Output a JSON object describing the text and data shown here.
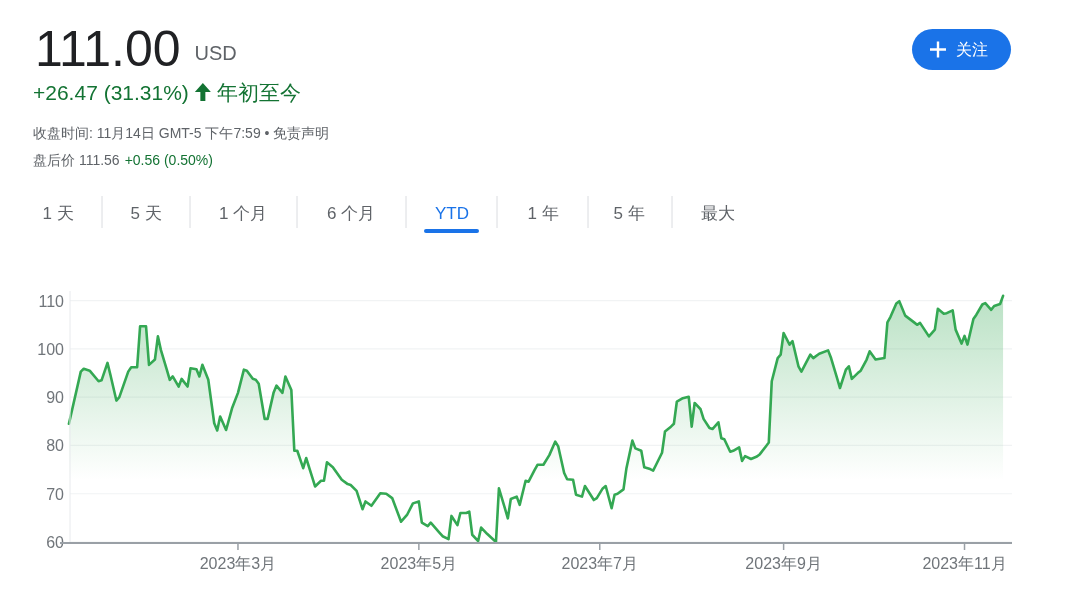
{
  "chart_data": {
    "type": "area",
    "title": "111.00",
    "subtitle": "USD",
    "annotations": [
      "+26.47 (31.31%)",
      "年初至今",
      "收盘时间: 11月14日 GMT-5 下午7:59 • 免责声明",
      "盘后价 111.56",
      "+0.56 (0.50%)",
      "1 天",
      "5 天",
      "1 个月",
      "6 个月",
      "YTD",
      "1 年",
      "5 年",
      "最大",
      "关注"
    ],
    "color": "#34a853",
    "grid": "y",
    "marker": "none",
    "line_style": "solid",
    "xlim": [
      "2023-01-01",
      "2023-11-16"
    ],
    "ylim": [
      60,
      112
    ],
    "xticks": [
      {
        "value": "2023-03-01",
        "label": "2023年3月"
      },
      {
        "value": "2023-05-01",
        "label": "2023年5月"
      },
      {
        "value": "2023-07-01",
        "label": "2023年7月"
      },
      {
        "value": "2023-09-01",
        "label": "2023年9月"
      },
      {
        "value": "2023-11-01",
        "label": "2023年11月"
      }
    ],
    "yticks": [
      60,
      70,
      80,
      90,
      100,
      110
    ],
    "x": [
      "2023-01-03",
      "2023-01-07",
      "2023-01-08",
      "2023-01-10",
      "2023-01-13",
      "2023-01-14",
      "2023-01-16",
      "2023-01-17",
      "2023-01-19",
      "2023-01-20",
      "2023-01-23",
      "2023-01-24",
      "2023-01-26",
      "2023-01-27",
      "2023-01-29",
      "2023-01-30",
      "2023-02-01",
      "2023-02-02",
      "2023-02-03",
      "2023-02-05",
      "2023-02-06",
      "2023-02-07",
      "2023-02-09",
      "2023-02-10",
      "2023-02-12",
      "2023-02-13",
      "2023-02-15",
      "2023-02-16",
      "2023-02-17",
      "2023-02-19",
      "2023-02-21",
      "2023-02-22",
      "2023-02-23",
      "2023-02-25",
      "2023-02-27",
      "2023-03-01",
      "2023-03-03",
      "2023-03-04",
      "2023-03-06",
      "2023-03-07",
      "2023-03-08",
      "2023-03-10",
      "2023-03-11",
      "2023-03-13",
      "2023-03-14",
      "2023-03-16",
      "2023-03-17",
      "2023-03-19",
      "2023-03-20",
      "2023-03-21",
      "2023-03-23",
      "2023-03-24",
      "2023-03-26",
      "2023-03-27",
      "2023-03-29",
      "2023-03-30",
      "2023-03-31",
      "2023-04-02",
      "2023-04-05",
      "2023-04-07",
      "2023-04-08",
      "2023-04-10",
      "2023-04-12",
      "2023-04-13",
      "2023-04-15",
      "2023-04-18",
      "2023-04-20",
      "2023-04-22",
      "2023-04-25",
      "2023-04-27",
      "2023-04-29",
      "2023-05-01",
      "2023-05-02",
      "2023-05-04",
      "2023-05-05",
      "2023-05-08",
      "2023-05-09",
      "2023-05-11",
      "2023-05-12",
      "2023-05-14",
      "2023-05-15",
      "2023-05-17",
      "2023-05-18",
      "2023-05-19",
      "2023-05-21",
      "2023-05-22",
      "2023-05-24",
      "2023-05-27",
      "2023-05-28",
      "2023-05-30",
      "2023-05-31",
      "2023-06-01",
      "2023-06-03",
      "2023-06-04",
      "2023-06-06",
      "2023-06-07",
      "2023-06-09",
      "2023-06-10",
      "2023-06-12",
      "2023-06-14",
      "2023-06-16",
      "2023-06-17",
      "2023-06-19",
      "2023-06-20",
      "2023-06-22",
      "2023-06-23",
      "2023-06-25",
      "2023-06-26",
      "2023-06-29",
      "2023-06-30",
      "2023-07-02",
      "2023-07-03",
      "2023-07-05",
      "2023-07-06",
      "2023-07-07",
      "2023-07-09",
      "2023-07-10",
      "2023-07-12",
      "2023-07-13",
      "2023-07-15",
      "2023-07-16",
      "2023-07-18",
      "2023-07-19",
      "2023-07-20",
      "2023-07-22",
      "2023-07-23",
      "2023-07-25",
      "2023-07-26",
      "2023-07-27",
      "2023-07-29",
      "2023-07-31",
      "2023-08-01",
      "2023-08-02",
      "2023-08-04",
      "2023-08-05",
      "2023-08-07",
      "2023-08-08",
      "2023-08-10",
      "2023-08-11",
      "2023-08-12",
      "2023-08-14",
      "2023-08-15",
      "2023-08-17",
      "2023-08-18",
      "2023-08-19",
      "2023-08-21",
      "2023-08-23",
      "2023-08-24",
      "2023-08-26",
      "2023-08-27",
      "2023-08-28",
      "2023-08-30",
      "2023-08-31",
      "2023-09-01",
      "2023-09-03",
      "2023-09-04",
      "2023-09-06",
      "2023-09-07",
      "2023-09-10",
      "2023-09-11",
      "2023-09-13",
      "2023-09-16",
      "2023-09-17",
      "2023-09-19",
      "2023-09-20",
      "2023-09-22",
      "2023-09-23",
      "2023-09-24",
      "2023-09-26",
      "2023-09-27",
      "2023-09-29",
      "2023-09-30",
      "2023-10-02",
      "2023-10-05",
      "2023-10-06",
      "2023-10-07",
      "2023-10-09",
      "2023-10-10",
      "2023-10-12",
      "2023-10-15",
      "2023-10-16",
      "2023-10-17",
      "2023-10-20",
      "2023-10-22",
      "2023-10-23",
      "2023-10-25",
      "2023-10-26",
      "2023-10-28",
      "2023-10-29",
      "2023-10-31",
      "2023-11-01",
      "2023-11-02",
      "2023-11-04",
      "2023-11-05",
      "2023-11-07",
      "2023-11-08",
      "2023-11-10",
      "2023-11-11",
      "2023-11-13",
      "2023-11-14"
    ],
    "values": [
      84.5,
      95.3,
      95.9,
      95.5,
      93.3,
      93.5,
      97.1,
      94.6,
      89.3,
      90.0,
      95.3,
      96.2,
      96.2,
      104.7,
      104.7,
      96.7,
      97.8,
      102.6,
      99.8,
      95.7,
      93.6,
      94.3,
      92.2,
      93.8,
      92.2,
      96.0,
      95.8,
      94.3,
      96.7,
      93.6,
      84.6,
      83.1,
      86.0,
      83.2,
      87.7,
      90.9,
      95.7,
      95.5,
      93.8,
      93.6,
      92.8,
      85.5,
      85.5,
      90.9,
      92.4,
      90.9,
      94.3,
      91.5,
      78.9,
      78.9,
      75.3,
      77.4,
      73.5,
      71.5,
      72.7,
      72.7,
      76.5,
      75.5,
      72.9,
      72.0,
      71.8,
      70.6,
      66.8,
      68.4,
      67.5,
      70.1,
      70.0,
      69.1,
      64.2,
      65.6,
      68.0,
      68.4,
      64.0,
      63.3,
      64.0,
      61.9,
      61.2,
      60.6,
      65.4,
      63.5,
      66.0,
      66.0,
      66.3,
      61.5,
      60.2,
      63.0,
      61.7,
      60.0,
      71.1,
      67.0,
      64.9,
      68.9,
      69.4,
      67.7,
      72.7,
      72.5,
      74.9,
      76.0,
      76.0,
      78.0,
      80.8,
      79.8,
      74.3,
      73.0,
      72.9,
      69.8,
      69.4,
      71.6,
      68.7,
      69.1,
      71.1,
      71.6,
      67.0,
      69.8,
      70.0,
      70.9,
      75.3,
      81.0,
      79.4,
      78.9,
      75.5,
      75.1,
      74.8,
      76.0,
      78.5,
      82.9,
      83.9,
      84.5,
      89.1,
      89.8,
      90.1,
      83.9,
      88.8,
      87.5,
      85.5,
      83.6,
      83.4,
      84.8,
      81.5,
      81.3,
      78.7,
      78.9,
      79.6,
      76.8,
      77.8,
      77.2,
      77.7,
      78.2,
      79.8,
      80.6,
      93.3,
      98.1,
      98.8,
      103.3,
      100.9,
      101.6,
      96.4,
      95.3,
      98.8,
      98.1,
      99.0,
      99.7,
      98.1,
      94.0,
      91.9,
      95.7,
      96.4,
      93.8,
      95.0,
      95.5,
      97.8,
      99.5,
      97.8,
      98.1,
      105.5,
      106.6,
      109.4,
      109.9,
      106.9,
      105.5,
      105.0,
      105.4,
      102.6,
      104.0,
      108.3,
      107.3,
      107.4,
      108.0,
      104.0,
      101.1,
      102.7,
      100.9,
      106.2,
      107.1,
      109.2,
      109.5,
      108.1,
      108.9,
      109.3,
      111.0
    ]
  }
}
